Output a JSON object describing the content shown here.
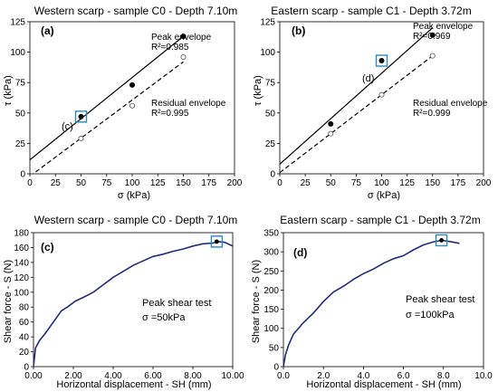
{
  "chart_data": [
    {
      "type": "scatter",
      "panel": "(a)",
      "title": "Western scarp - sample C0 - Depth 7.10m",
      "xlabel": "σ (kPa)",
      "ylabel": "τ (kPa)",
      "xlim": [
        0,
        200
      ],
      "ylim": [
        0,
        125
      ],
      "xticks": [
        "0",
        "25",
        "50",
        "75",
        "100",
        "125",
        "150",
        "175",
        "200"
      ],
      "yticks": [
        "0",
        "25",
        "50",
        "75",
        "100",
        "125"
      ],
      "series": [
        {
          "name": "Peak envelope",
          "x": [
            50,
            100,
            150
          ],
          "y": [
            47,
            73,
            113
          ],
          "marker": "filled",
          "fit": {
            "x": [
              0,
              150
            ],
            "y": [
              11.5,
              113
            ],
            "style": "solid"
          }
        },
        {
          "name": "Residual envelope",
          "x": [
            50,
            100,
            150
          ],
          "y": [
            29,
            56,
            96
          ],
          "marker": "open",
          "fit": {
            "x": [
              0,
              150
            ],
            "y": [
              -2,
              92
            ],
            "style": "dashed"
          }
        }
      ],
      "annotations": [
        {
          "text": "Peak envelope",
          "sub": "R²=0.985"
        },
        {
          "text": "Residual envelope",
          "sub": "R²=0.995"
        },
        {
          "text": "(c)",
          "x": 50,
          "y": 47,
          "boxed": true
        }
      ]
    },
    {
      "type": "scatter",
      "panel": "(b)",
      "title": "Eastern scarp - sample C1 - Depth 3.72m",
      "xlabel": "σ (kPa)",
      "ylabel": "τ (kPa)",
      "xlim": [
        0,
        200
      ],
      "ylim": [
        0,
        125
      ],
      "xticks": [
        "0",
        "25",
        "50",
        "75",
        "100",
        "125",
        "150",
        "175",
        "200"
      ],
      "yticks": [
        "0",
        "25",
        "50",
        "75",
        "100",
        "125"
      ],
      "series": [
        {
          "name": "Peak envelope",
          "x": [
            50,
            100,
            150
          ],
          "y": [
            41,
            93,
            114
          ],
          "marker": "filled",
          "fit": {
            "x": [
              0,
              150
            ],
            "y": [
              8,
              120
            ],
            "style": "solid"
          }
        },
        {
          "name": "Residual envelope",
          "x": [
            50,
            100,
            150
          ],
          "y": [
            33,
            65,
            97
          ],
          "marker": "open",
          "fit": {
            "x": [
              0,
              150
            ],
            "y": [
              1,
              97
            ],
            "style": "dashed"
          }
        }
      ],
      "annotations": [
        {
          "text": "Peak envelope",
          "sub": "R²=0.969"
        },
        {
          "text": "Residual envelope",
          "sub": "R²=0.999"
        },
        {
          "text": "(d)",
          "x": 100,
          "y": 93,
          "boxed": true
        }
      ]
    },
    {
      "type": "line",
      "panel": "(c)",
      "title": "Western scarp - sample C0 - Depth 7.10m",
      "xlabel": "Horizontal displacement - SH (mm)",
      "ylabel": "Shear force - S (N)",
      "xlim": [
        0,
        10
      ],
      "ylim": [
        0,
        180
      ],
      "xticks": [
        "0.00",
        "2.00",
        "4.00",
        "6.00",
        "8.00",
        "10.00"
      ],
      "yticks": [
        "0",
        "20",
        "40",
        "60",
        "80",
        "100",
        "120",
        "140",
        "160",
        "180"
      ],
      "series": [
        {
          "name": "",
          "x": [
            0,
            0.1,
            0.3,
            0.6,
            1,
            1.4,
            1.7,
            2.1,
            2.5,
            3,
            3.5,
            4,
            4.5,
            5,
            5.5,
            6,
            6.5,
            7,
            7.5,
            8,
            8.5,
            9,
            9.3,
            9.6,
            10
          ],
          "y": [
            0,
            25,
            35,
            45,
            60,
            75,
            80,
            88,
            93,
            100,
            110,
            120,
            128,
            136,
            142,
            148,
            151,
            155,
            158,
            162,
            165,
            166,
            168,
            167,
            162
          ]
        }
      ],
      "peak_point": {
        "x": 9.2,
        "y": 168
      },
      "annotations": [
        {
          "text": "Peak shear test"
        },
        {
          "text": "σ =50kPa"
        }
      ]
    },
    {
      "type": "line",
      "panel": "(d)",
      "title": "Eastern scarp - sample C1 - Depth 3.72m",
      "xlabel": "Horizontal displacement - SH (mm)",
      "ylabel": "Shear force - S (N)",
      "xlim": [
        0,
        10
      ],
      "ylim": [
        0,
        350
      ],
      "xticks": [
        "0.0",
        "2.0",
        "4.0",
        "6.0",
        "8.0",
        "10.0"
      ],
      "yticks": [
        "0",
        "50",
        "100",
        "150",
        "200",
        "250",
        "300",
        "350"
      ],
      "series": [
        {
          "name": "",
          "x": [
            0,
            0.1,
            0.25,
            0.5,
            1,
            1.5,
            2,
            2.5,
            3,
            3.5,
            4,
            4.5,
            5,
            5.5,
            6,
            6.5,
            7,
            7.5,
            7.9,
            8.3,
            8.8
          ],
          "y": [
            0,
            30,
            55,
            85,
            115,
            140,
            170,
            195,
            210,
            228,
            243,
            255,
            270,
            282,
            290,
            305,
            318,
            326,
            330,
            327,
            322
          ]
        }
      ],
      "peak_point": {
        "x": 7.9,
        "y": 330
      },
      "annotations": [
        {
          "text": "Peak shear test"
        },
        {
          "text": "σ =100kPa"
        }
      ]
    }
  ]
}
